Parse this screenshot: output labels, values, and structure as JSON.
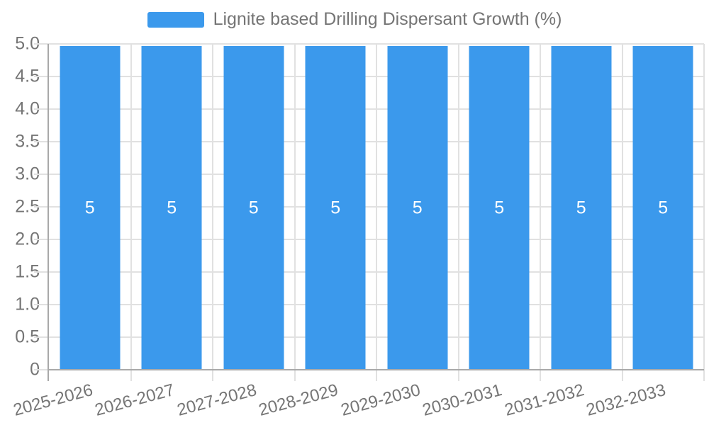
{
  "chart_data": {
    "type": "bar",
    "title": "Lignite based Drilling Dispersant Growth (%)",
    "categories": [
      "2025-2026",
      "2026-2027",
      "2027-2028",
      "2028-2029",
      "2029-2030",
      "2030-2031",
      "2031-2032",
      "2032-2033"
    ],
    "values": [
      5,
      5,
      5,
      5,
      5,
      5,
      5,
      5
    ],
    "bar_labels": [
      "5",
      "5",
      "5",
      "5",
      "5",
      "5",
      "5",
      "5"
    ],
    "xlabel": "",
    "ylabel": "",
    "ylim": [
      0,
      5
    ],
    "ytick_step": 0.5,
    "y_ticks": [
      "5.0",
      "4.5",
      "4.0",
      "3.5",
      "3.0",
      "2.5",
      "2.0",
      "1.5",
      "1.0",
      "0.5",
      "0"
    ],
    "grid": true,
    "legend_position": "top-center",
    "x_label_rotation_deg": -15,
    "colors": {
      "bar": "#3B99EC",
      "label": "#FFFFFF",
      "axis": "#A9A9A9",
      "grid": "#E1E1E1",
      "text": "#757575"
    }
  }
}
